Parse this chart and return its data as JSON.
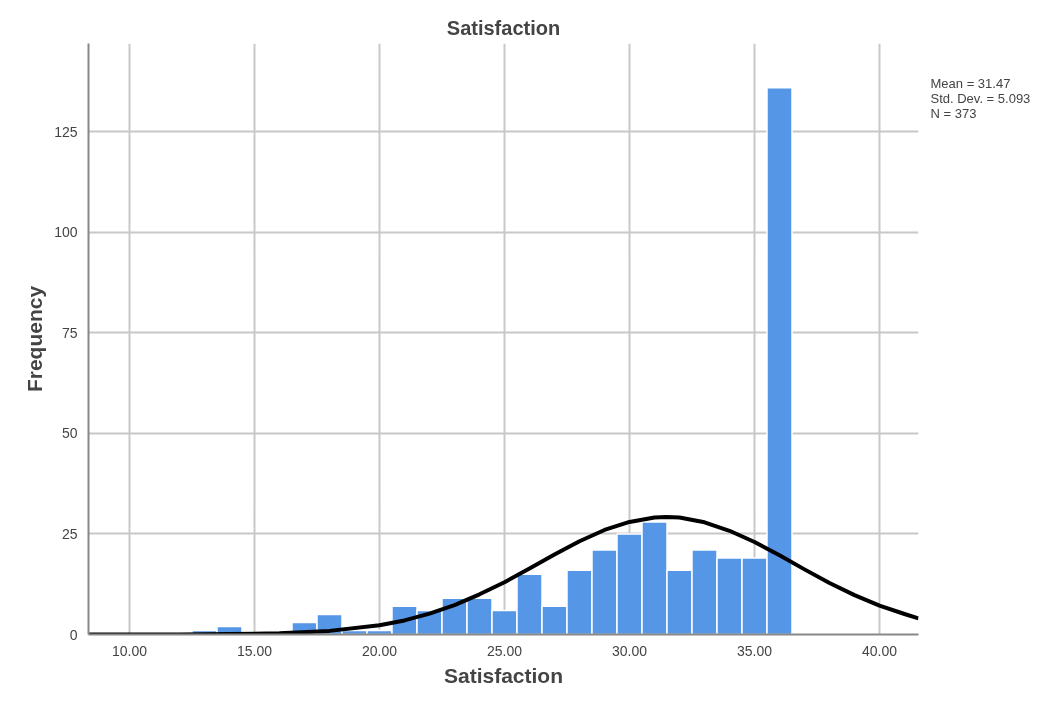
{
  "chart_data": {
    "type": "histogram",
    "title": "Satisfaction",
    "xlabel": "Satisfaction",
    "ylabel": "Frequency",
    "bins": [
      12.5,
      13.5,
      14.5,
      15.5,
      16.5,
      17.5,
      18.5,
      19.5,
      20.5,
      21.5,
      22.5,
      23.5,
      24.5,
      25.5,
      26.5,
      27.5,
      28.5,
      29.5,
      30.5,
      31.5,
      32.5,
      33.5,
      34.5,
      35.5,
      36.5
    ],
    "values": [
      1,
      2,
      0,
      0,
      3,
      5,
      1,
      1,
      7,
      6,
      9,
      9,
      6,
      15,
      7,
      16,
      21,
      25,
      28,
      16,
      21,
      19,
      19,
      136
    ],
    "color": "#5596e6",
    "series": [
      {
        "type": "line",
        "color": "#000000",
        "x": [
          8.36,
          10,
          12,
          14,
          16,
          18,
          20,
          21,
          22,
          23,
          24,
          25,
          26,
          27,
          28,
          29,
          30,
          31,
          31.47,
          32,
          33,
          34,
          35,
          36,
          37,
          38,
          39,
          40,
          41,
          41.56
        ],
        "values": [
          0.0,
          0.0,
          0.0,
          0.1,
          0.3,
          0.9,
          2.3,
          3.5,
          5.2,
          7.3,
          10.0,
          13.0,
          16.4,
          19.9,
          23.2,
          26.0,
          28.0,
          29.1,
          29.2,
          29.1,
          27.9,
          25.8,
          23.0,
          19.7,
          16.2,
          12.8,
          9.8,
          7.2,
          5.1,
          4.0
        ]
      }
    ],
    "xlim": [
      8.36,
      41.56
    ],
    "ylim": [
      0,
      147
    ],
    "xticks": [
      {
        "value": 10,
        "label": "10.00"
      },
      {
        "value": 15,
        "label": "15.00"
      },
      {
        "value": 20,
        "label": "20.00"
      },
      {
        "value": 25,
        "label": "25.00"
      },
      {
        "value": 30,
        "label": "30.00"
      },
      {
        "value": 35,
        "label": "35.00"
      },
      {
        "value": 40,
        "label": "40.00"
      }
    ],
    "yticks": [
      0,
      25,
      50,
      75,
      100,
      125
    ],
    "grid": true,
    "annotations": [
      "Mean = 31.47",
      "Std. Dev. = 5.093",
      "N = 373"
    ]
  }
}
